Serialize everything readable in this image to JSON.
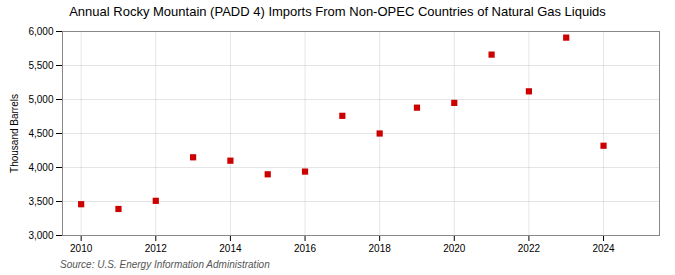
{
  "chart_data": {
    "type": "scatter",
    "title": "Annual Rocky Mountain (PADD 4) Imports From Non-OPEC Countries of Natural Gas Liquids",
    "ylabel": "Thousand Barrels",
    "source": "Source: U.S. Energy Information Administration",
    "x": [
      2010,
      2011,
      2012,
      2013,
      2014,
      2015,
      2016,
      2017,
      2018,
      2019,
      2020,
      2021,
      2022,
      2023,
      2024
    ],
    "values": [
      3460,
      3390,
      3510,
      4150,
      4100,
      3900,
      3940,
      4760,
      4500,
      4880,
      4950,
      5660,
      5120,
      5910,
      4320
    ],
    "color": "#cc0000",
    "marker": "square",
    "xlim": [
      2009.5,
      2025.5
    ],
    "xticks": [
      2010,
      2012,
      2014,
      2016,
      2018,
      2020,
      2022,
      2024
    ],
    "ylim": [
      3000,
      6000
    ],
    "yticks": [
      {
        "value": 3000,
        "label": "3,000"
      },
      {
        "value": 3500,
        "label": "3,500"
      },
      {
        "value": 4000,
        "label": "4,000"
      },
      {
        "value": 4500,
        "label": "4,500"
      },
      {
        "value": 5000,
        "label": "5,000"
      },
      {
        "value": 5500,
        "label": "5,500"
      },
      {
        "value": 6000,
        "label": "6,000"
      }
    ],
    "grid": true
  }
}
